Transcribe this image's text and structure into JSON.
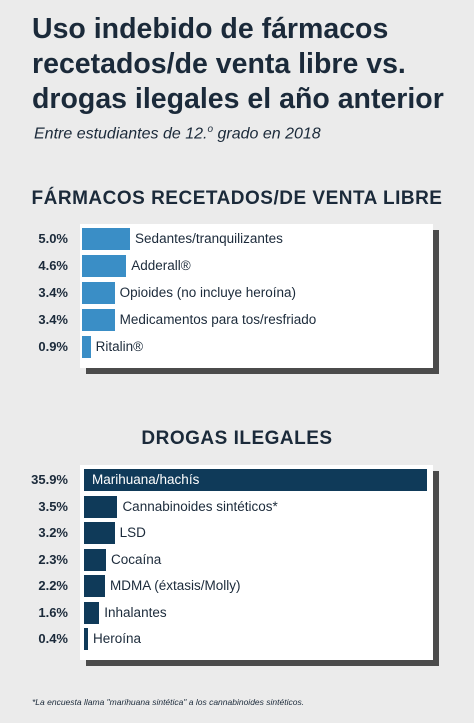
{
  "header": {
    "title": "Uso indebido de fármacos recetados/de venta libre vs. drogas ilegales el año anterior",
    "subtitle_prefix": "Entre estudiantes de 12.",
    "subtitle_sup": "o",
    "subtitle_suffix": " grado en 2018"
  },
  "footnote": "*La encuesta llama \"marihuana sintética\" a los cannabinoides sintéticos.",
  "colors": {
    "rx_bar": "#3a8ec6",
    "illegal_bar": "#0f3a59",
    "background": "#ebebeb"
  },
  "chart_data": [
    {
      "type": "bar",
      "orientation": "horizontal",
      "title": "FÁRMACOS RECETADOS/DE VENTA LIBRE",
      "unit": "%",
      "categories": [
        "Sedantes/tranquilizantes",
        "Adderall®",
        "Opioides (no incluye heroína)",
        "Medicamentos para tos/resfriado",
        "Ritalin®"
      ],
      "values": [
        5.0,
        4.6,
        3.4,
        3.4,
        0.9
      ],
      "value_labels": [
        "5.0%",
        "4.6%",
        "3.4%",
        "3.4%",
        "0.9%"
      ],
      "xlim": [
        0,
        35.9
      ]
    },
    {
      "type": "bar",
      "orientation": "horizontal",
      "title": "DROGAS ILEGALES",
      "unit": "%",
      "categories": [
        "Marihuana/hachís",
        "Cannabinoides sintéticos*",
        "LSD",
        "Cocaína",
        "MDMA (éxtasis/Molly)",
        "Inhalantes",
        "Heroína"
      ],
      "values": [
        35.9,
        3.5,
        3.2,
        2.3,
        2.2,
        1.6,
        0.4
      ],
      "value_labels": [
        "35.9%",
        "3.5%",
        "3.2%",
        "2.3%",
        "2.2%",
        "1.6%",
        "0.4%"
      ],
      "xlim": [
        0,
        35.9
      ]
    }
  ]
}
